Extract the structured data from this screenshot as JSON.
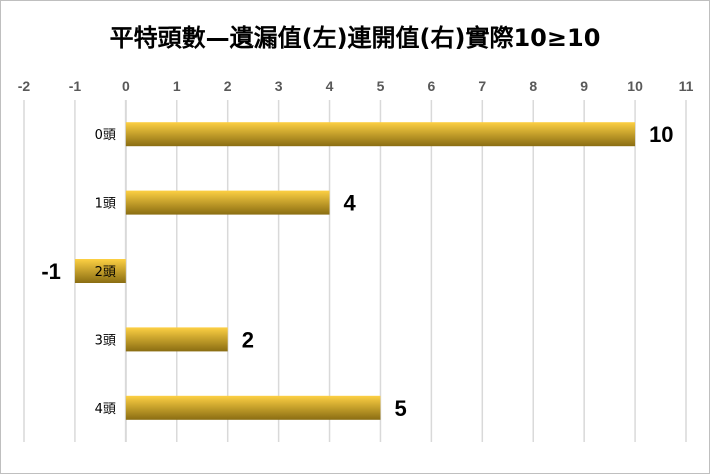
{
  "chart_data": {
    "type": "bar",
    "orientation": "horizontal",
    "title": "平特頭數—遺漏值(左)連開值(右)實際10≥10",
    "categories": [
      "0頭",
      "1頭",
      "2頭",
      "3頭",
      "4頭"
    ],
    "values": [
      10,
      4,
      -1,
      2,
      5
    ],
    "data_labels": [
      "10",
      "4",
      "-1",
      "2",
      "5"
    ],
    "xlim": [
      -2,
      11
    ],
    "x_ticks": [
      "-2",
      "-1",
      "0",
      "1",
      "2",
      "3",
      "4",
      "5",
      "6",
      "7",
      "8",
      "9",
      "10",
      "11"
    ],
    "x_axis_position": "top",
    "grid": true,
    "legend": "none",
    "colors": {
      "bar_top": "#fdd043",
      "bar_bottom": "#8a6d12",
      "grid": "#d9d9d9",
      "border": "#bfbfbf"
    }
  }
}
